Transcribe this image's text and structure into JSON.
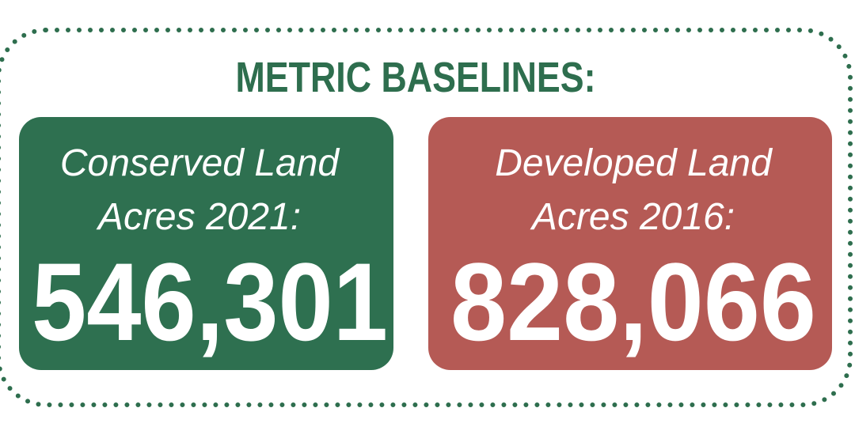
{
  "title": "METRIC BASELINES:",
  "cards": [
    {
      "label": [
        "Conserved Land",
        "Acres 2021:"
      ],
      "value": "546,301"
    },
    {
      "label": [
        "Developed Land",
        "Acres 2016:"
      ],
      "value": "828,066"
    }
  ]
}
